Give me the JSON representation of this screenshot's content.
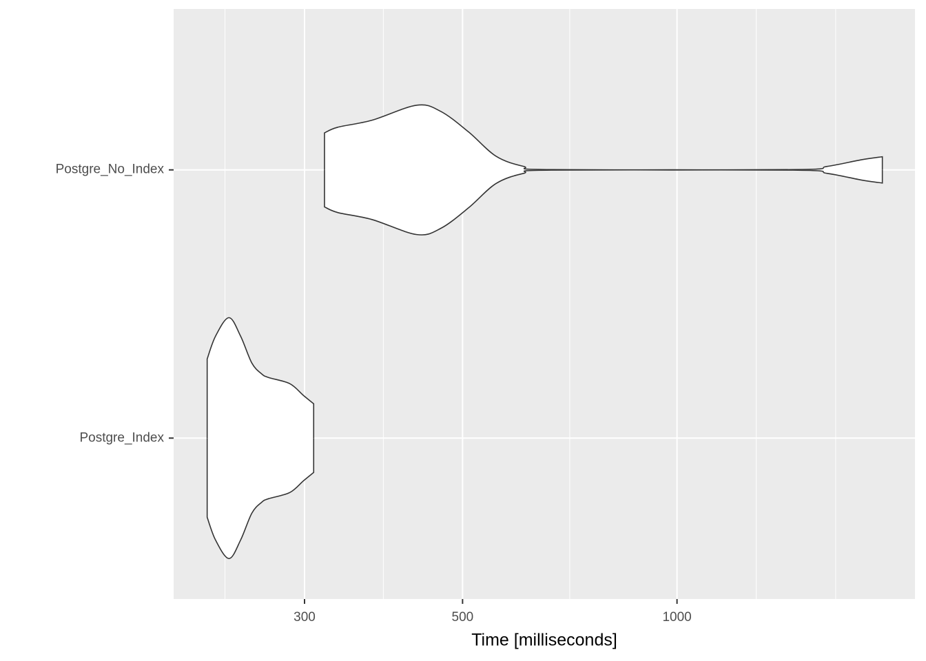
{
  "chart_data": {
    "type": "violin",
    "orientation": "horizontal",
    "x_label": "Time [milliseconds]",
    "x_log": true,
    "xlim": [
      196.5,
      2158
    ],
    "xticks": [
      300,
      500,
      1000
    ],
    "x_minor_grid": [
      232,
      387,
      707,
      1292,
      1670
    ],
    "grid": true,
    "categories": [
      "Postgre_Index",
      "Postgre_No_Index"
    ],
    "series": [
      {
        "name": "Postgre_Index",
        "color": "#ffffff",
        "x": [
          219,
          225,
          235,
          244,
          253,
          261,
          267,
          286,
          299,
          309
        ],
        "density": [
          0.295,
          0.38,
          0.449,
          0.38,
          0.28,
          0.24,
          0.226,
          0.203,
          0.159,
          0.128
        ]
      },
      {
        "name": "Postgre_No_Index",
        "color": "#ffffff",
        "x": [
          320,
          334,
          373,
          431,
          466,
          510,
          557,
          609,
          666,
          1454,
          1625,
          1817,
          1942
        ],
        "density": [
          0.138,
          0.159,
          0.185,
          0.241,
          0.218,
          0.141,
          0.051,
          0.013,
          0.001,
          0.001,
          0.013,
          0.038,
          0.049
        ]
      }
    ]
  }
}
